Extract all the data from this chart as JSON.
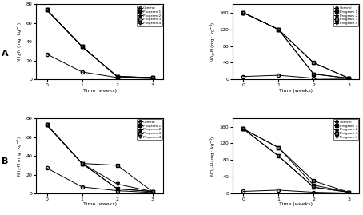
{
  "time": [
    0,
    1,
    2,
    3
  ],
  "A_NH4": {
    "Control": [
      27,
      8,
      2,
      1
    ],
    "Program1": [
      74,
      35,
      3,
      2
    ],
    "Program2": [
      74,
      35,
      3,
      2
    ],
    "Program3": [
      74,
      35,
      3,
      2
    ],
    "Program4": [
      74,
      35,
      3,
      2
    ]
  },
  "A_NO3": {
    "Control": [
      7,
      10,
      3,
      2
    ],
    "Program1": [
      160,
      120,
      13,
      3
    ],
    "Program2": [
      160,
      120,
      40,
      3
    ],
    "Program3": [
      160,
      120,
      40,
      3
    ],
    "Program4": [
      160,
      120,
      13,
      3
    ]
  },
  "B_NH4": {
    "Control": [
      27,
      7,
      3,
      1
    ],
    "Program1": [
      73,
      32,
      5,
      2
    ],
    "Program2": [
      73,
      32,
      5,
      2
    ],
    "Program3": [
      73,
      32,
      30,
      2
    ],
    "Program4": [
      73,
      32,
      10,
      2
    ]
  },
  "B_NO3": {
    "Control": [
      5,
      8,
      3,
      1
    ],
    "Program1": [
      155,
      110,
      20,
      3
    ],
    "Program2": [
      155,
      90,
      15,
      3
    ],
    "Program3": [
      155,
      110,
      30,
      3
    ],
    "Program4": [
      155,
      90,
      15,
      3
    ]
  },
  "ylim_NH4": [
    0,
    80
  ],
  "ylim_NO3": [
    0,
    180
  ],
  "yticks_NH4": [
    0,
    20,
    40,
    60,
    80
  ],
  "yticks_NO3": [
    0,
    40,
    80,
    120,
    160
  ],
  "xlabel": "Time (weeks)",
  "ylabel_NH4": "NH4-N (mg $\\cdot$ kg$^{-1}$)",
  "ylabel_NO3": "NO3-N (mg $\\cdot$ kg$^{-1}$)",
  "legend_labels": [
    "Control",
    "Program 1",
    "Program 2",
    "Program 3",
    "Program 4"
  ],
  "markers": [
    "o",
    "s",
    "^",
    "s",
    "v"
  ],
  "marker_fills": [
    "none",
    "full",
    "full",
    "full",
    "full"
  ],
  "marker_colors": [
    "black",
    "black",
    "black",
    "gray",
    "gray"
  ],
  "linewidths": [
    0.7,
    0.7,
    0.7,
    0.7,
    0.7
  ]
}
